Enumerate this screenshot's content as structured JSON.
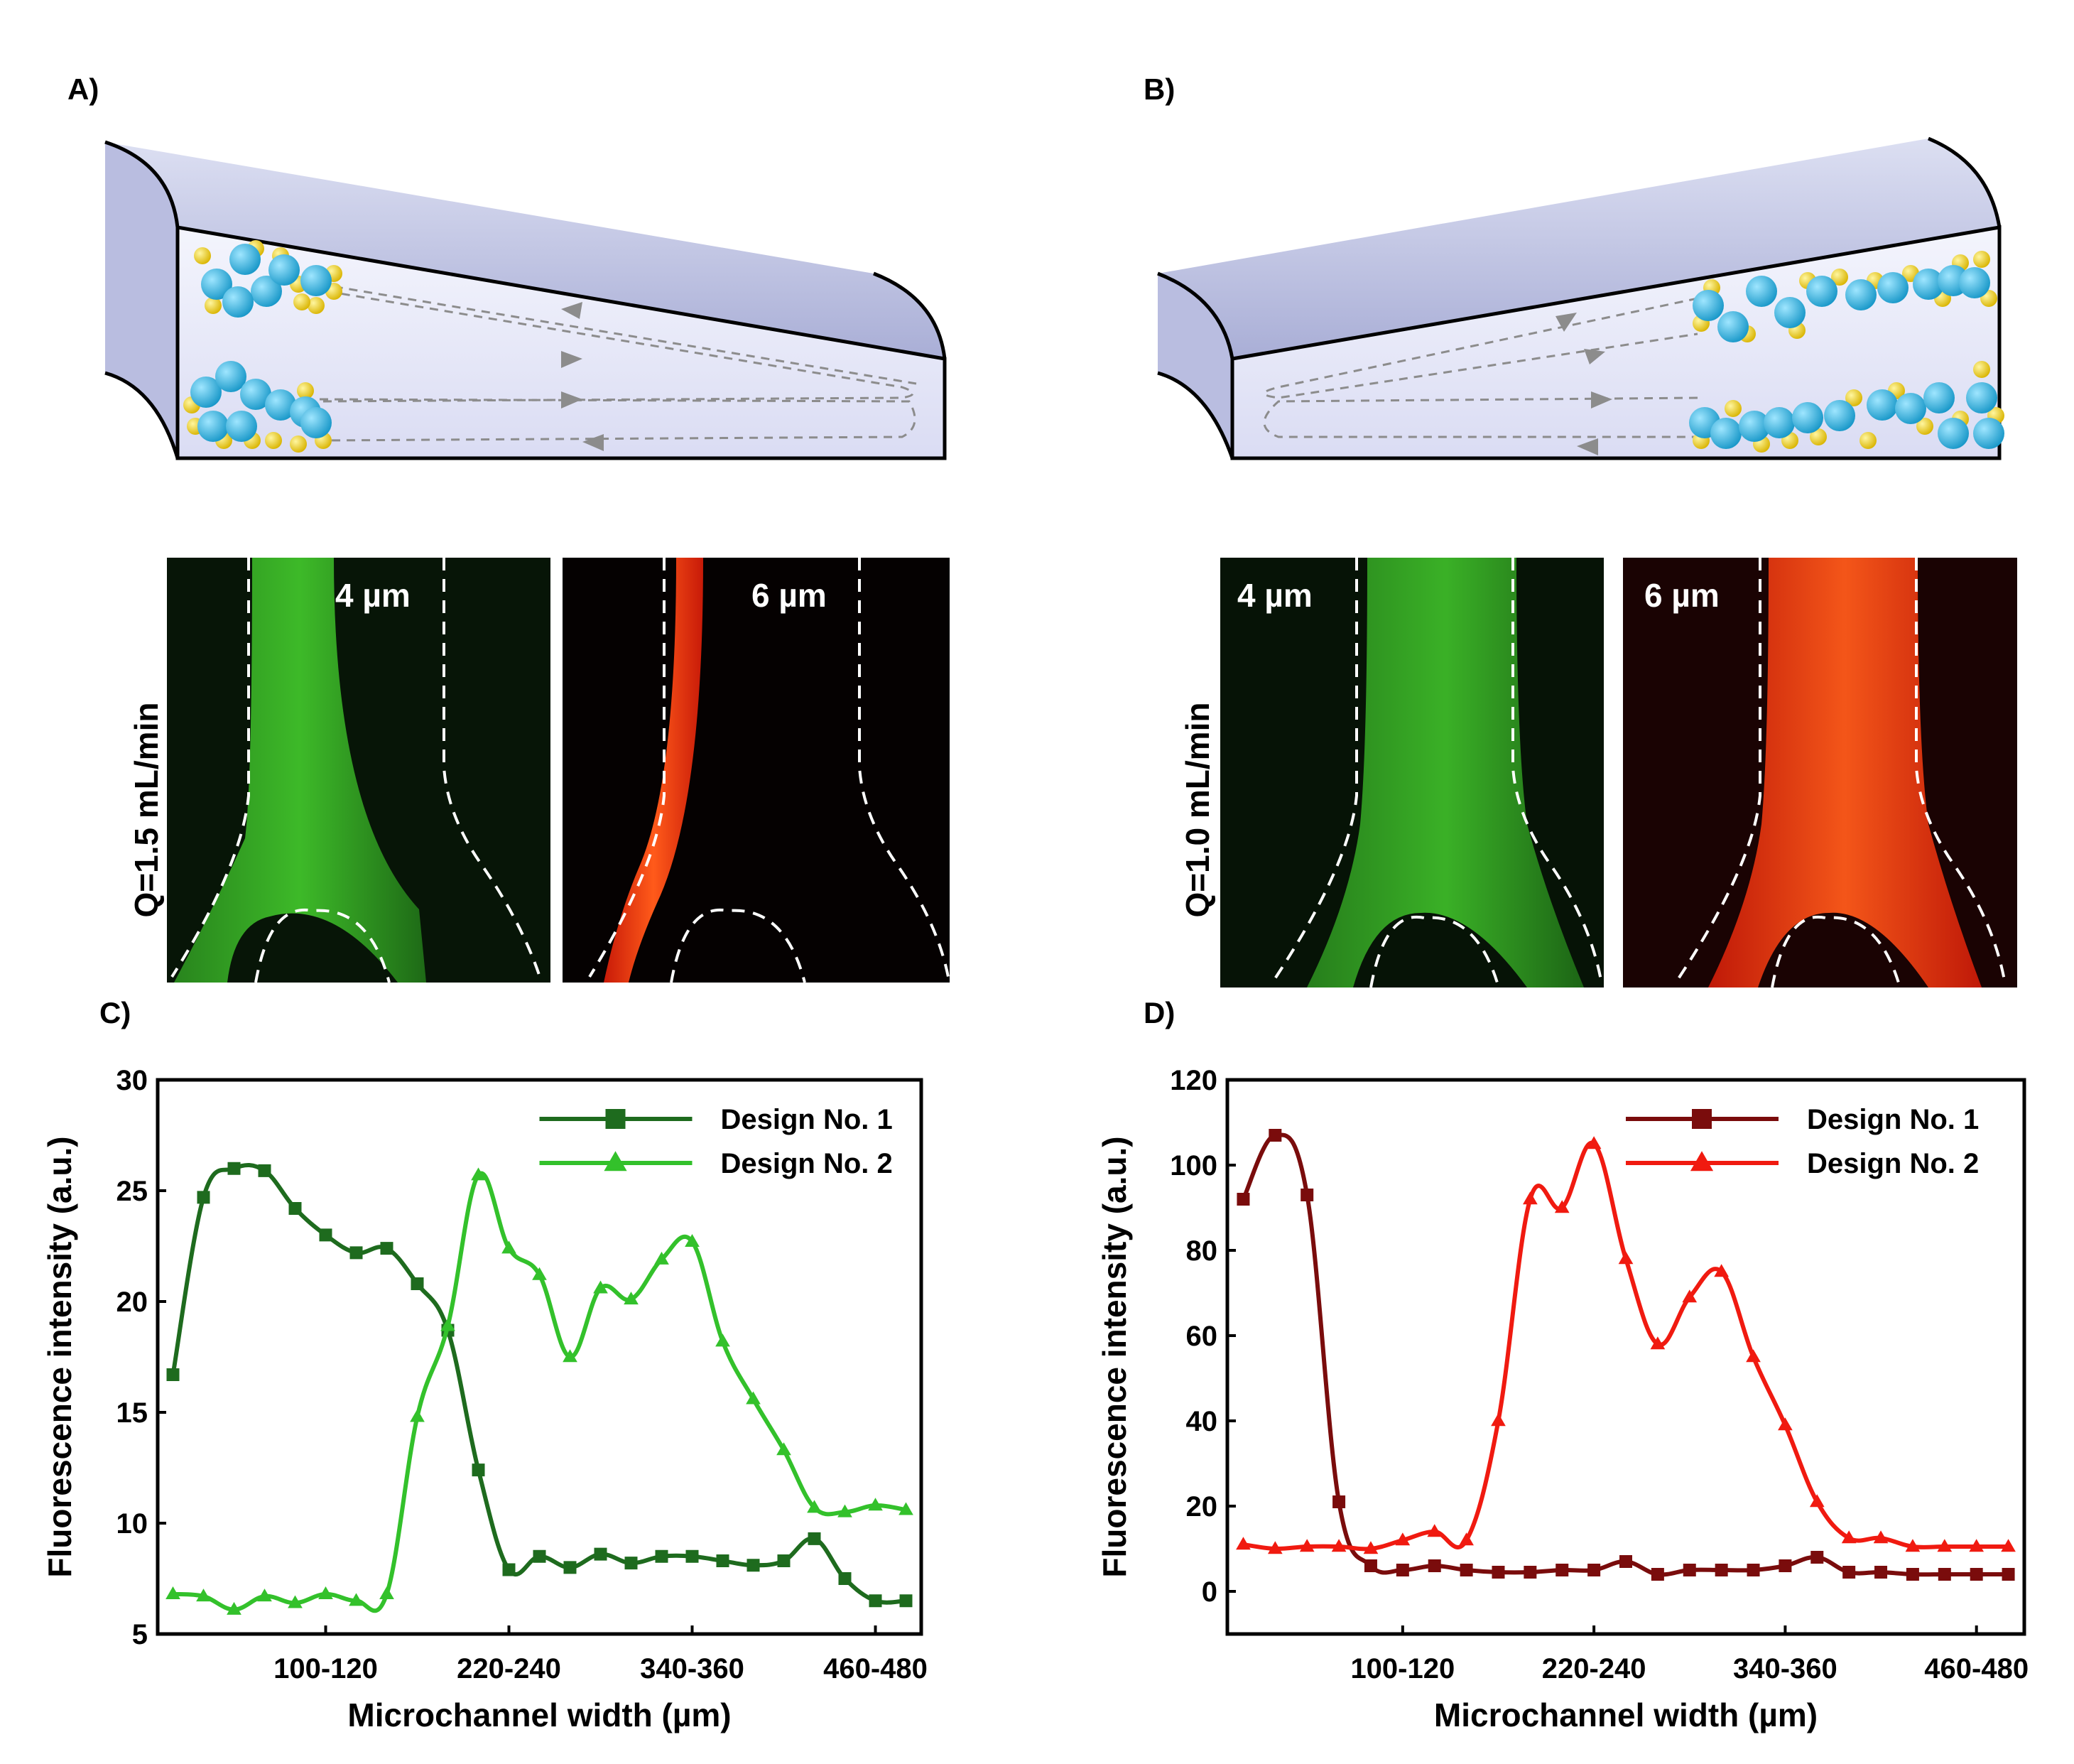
{
  "panels": {
    "a": "A)",
    "b": "B)",
    "c": "C)",
    "d": "D)"
  },
  "micrographs": {
    "left": {
      "flow_label": "Q=1.5 mL/min",
      "green_label": "4 µm",
      "red_label": "6 µm"
    },
    "right": {
      "flow_label": "Q=1.0 mL/min",
      "green_label": "4 µm",
      "red_label": "6 µm"
    }
  },
  "colors": {
    "c_series1": "#1e6b1e",
    "c_series2": "#33c12b",
    "d_series1": "#7a0c0c",
    "d_series2": "#f01a10"
  },
  "chart_data": [
    {
      "type": "line",
      "panel": "C)",
      "xlabel": "Microchannel width (µm)",
      "ylabel": "Fluorescence intensity (a.u.)",
      "ylim": [
        5,
        30
      ],
      "yticks": [
        "5",
        "10",
        "15",
        "20",
        "25",
        "30"
      ],
      "xlim": [
        0,
        500
      ],
      "xticks": [
        {
          "label": "100-120",
          "value": 110
        },
        {
          "label": "220-240",
          "value": 230
        },
        {
          "label": "340-360",
          "value": 350
        },
        {
          "label": "460-480",
          "value": 470
        }
      ],
      "legend_position": "top-right",
      "series": [
        {
          "name": "Design No. 1",
          "marker": "square",
          "x": [
            10,
            30,
            50,
            70,
            90,
            110,
            130,
            150,
            170,
            190,
            210,
            230,
            250,
            270,
            290,
            310,
            330,
            350,
            370,
            390,
            410,
            430,
            450,
            470,
            490
          ],
          "y": [
            16.7,
            24.7,
            26.0,
            25.9,
            24.2,
            23.0,
            22.2,
            22.4,
            20.8,
            18.7,
            12.4,
            7.9,
            8.5,
            8.0,
            8.6,
            8.2,
            8.5,
            8.5,
            8.3,
            8.1,
            8.3,
            9.3,
            7.5,
            6.5,
            6.5
          ]
        },
        {
          "name": "Design No. 2",
          "marker": "triangle",
          "x": [
            10,
            30,
            50,
            70,
            90,
            110,
            130,
            150,
            170,
            190,
            210,
            230,
            250,
            270,
            290,
            310,
            330,
            350,
            370,
            390,
            410,
            430,
            450,
            470,
            490
          ],
          "y": [
            6.8,
            6.7,
            6.1,
            6.7,
            6.4,
            6.8,
            6.5,
            6.8,
            14.8,
            18.9,
            25.7,
            22.4,
            21.2,
            17.5,
            20.6,
            20.1,
            21.9,
            22.7,
            18.2,
            15.6,
            13.3,
            10.7,
            10.5,
            10.8,
            10.6
          ]
        }
      ]
    },
    {
      "type": "line",
      "panel": "D)",
      "xlabel": "Microchannel width (µm)",
      "ylabel": "Fluorescence intensity (a.u.)",
      "ylim": [
        -10,
        120
      ],
      "yticks": [
        "0",
        "20",
        "40",
        "60",
        "80",
        "100",
        "120"
      ],
      "xlim": [
        0,
        500
      ],
      "xticks": [
        {
          "label": "100-120",
          "value": 110
        },
        {
          "label": "220-240",
          "value": 230
        },
        {
          "label": "340-360",
          "value": 350
        },
        {
          "label": "460-480",
          "value": 470
        }
      ],
      "legend_position": "top-right",
      "series": [
        {
          "name": "Design No. 1",
          "marker": "square",
          "x": [
            10,
            30,
            50,
            70,
            90,
            110,
            130,
            150,
            170,
            190,
            210,
            230,
            250,
            270,
            290,
            310,
            330,
            350,
            370,
            390,
            410,
            430,
            450,
            470,
            490
          ],
          "y": [
            92,
            107,
            93,
            21,
            6,
            5,
            6,
            5,
            4.5,
            4.5,
            5,
            5,
            7,
            4,
            5,
            5,
            5,
            6,
            8,
            4.5,
            4.5,
            4,
            4,
            4,
            4
          ]
        },
        {
          "name": "Design No. 2",
          "marker": "triangle",
          "x": [
            10,
            30,
            50,
            70,
            90,
            110,
            130,
            150,
            170,
            190,
            210,
            230,
            250,
            270,
            290,
            310,
            330,
            350,
            370,
            390,
            410,
            430,
            450,
            470,
            490
          ],
          "y": [
            11,
            10,
            10.5,
            10.5,
            10,
            12,
            14,
            12,
            40,
            92,
            90,
            105,
            78,
            58,
            69,
            75,
            55,
            39,
            21,
            12.5,
            12.5,
            10.5,
            10.5,
            10.5,
            10.5
          ]
        }
      ]
    }
  ]
}
